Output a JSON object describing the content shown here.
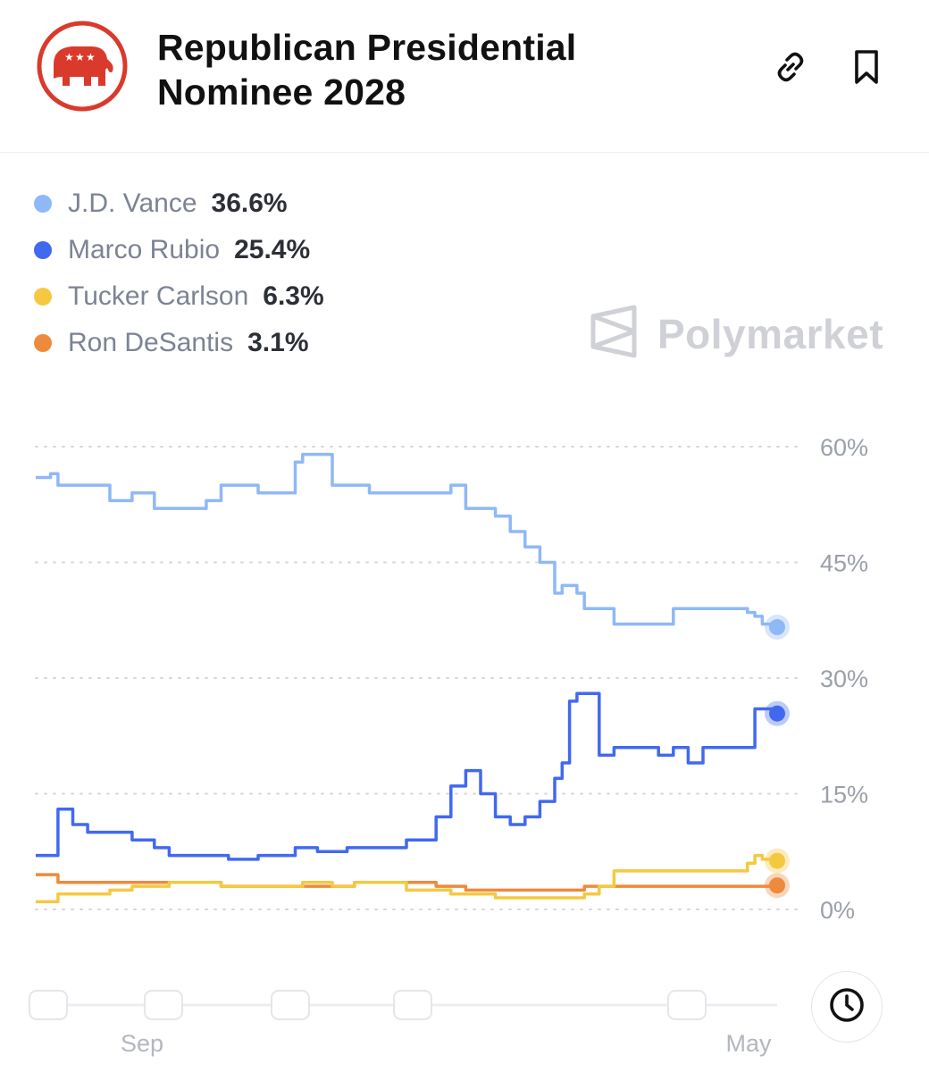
{
  "header": {
    "title": "Republican Presidential Nominee 2028",
    "logo_icon": "republican-elephant-logo",
    "link_icon": "link-icon",
    "bookmark_icon": "bookmark-icon"
  },
  "watermark": {
    "text": "Polymarket",
    "icon": "polymarket-logo-icon"
  },
  "legend": [
    {
      "name": "J.D. Vance",
      "value": "36.6%",
      "color": "#8fb8f7"
    },
    {
      "name": "Marco Rubio",
      "value": "25.4%",
      "color": "#4169f0"
    },
    {
      "name": "Tucker Carlson",
      "value": "6.3%",
      "color": "#f5c842"
    },
    {
      "name": "Ron DeSantis",
      "value": "3.1%",
      "color": "#ee8a3c"
    }
  ],
  "chart_data": {
    "type": "line",
    "title": "",
    "xlabel": "",
    "ylabel": "",
    "ylim": [
      0,
      60
    ],
    "y_ticks": [
      "60%",
      "45%",
      "30%",
      "15%",
      "0%"
    ],
    "y_tick_values": [
      60,
      45,
      30,
      15,
      0
    ],
    "x_ticks": [
      "Sep",
      "May"
    ],
    "grid": true,
    "legend_position": "top-left",
    "x": [
      0,
      2,
      3,
      5,
      7,
      10,
      13,
      16,
      18,
      20,
      23,
      25,
      26,
      28,
      30,
      33,
      35,
      36,
      38,
      40,
      42,
      43,
      45,
      48,
      50,
      52,
      54,
      56,
      58,
      60,
      62,
      64,
      66,
      68,
      70,
      71,
      72,
      73,
      74,
      76,
      78,
      79,
      80,
      82,
      84,
      86,
      88,
      90,
      92,
      94,
      96,
      97,
      98,
      100
    ],
    "series": [
      {
        "name": "J.D. Vance",
        "color": "#8fb8f7",
        "values": [
          56,
          56.5,
          55,
          55,
          55,
          53,
          54,
          52,
          52,
          52,
          53,
          55,
          55,
          55,
          54,
          54,
          58,
          59,
          59,
          55,
          55,
          55,
          54,
          54,
          54,
          54,
          54,
          55,
          52,
          52,
          51,
          49,
          47,
          45,
          41,
          42,
          42,
          41,
          39,
          39,
          37,
          37,
          37,
          37,
          37,
          39,
          39,
          39,
          39,
          39,
          38.5,
          38,
          37,
          36.6
        ]
      },
      {
        "name": "Marco Rubio",
        "color": "#4169f0",
        "values": [
          7,
          7,
          13,
          11,
          10,
          10,
          9,
          8,
          7,
          7,
          7,
          7,
          6.5,
          6.5,
          7,
          7,
          8,
          8,
          7.5,
          7.5,
          8,
          8,
          8,
          8,
          9,
          9,
          12,
          16,
          18,
          15,
          12,
          11,
          12,
          14,
          17,
          19,
          27,
          28,
          28,
          20,
          21,
          21,
          21,
          21,
          20,
          21,
          19,
          21,
          21,
          21,
          21,
          26,
          26,
          25.4
        ]
      },
      {
        "name": "Tucker Carlson",
        "color": "#f5c842",
        "values": [
          1,
          1,
          2,
          2,
          2,
          2.5,
          3,
          3,
          3.5,
          3.5,
          3.5,
          3,
          3,
          3,
          3,
          3,
          3,
          3.5,
          3.5,
          3,
          3,
          3.5,
          3.5,
          3.5,
          2.5,
          2.5,
          2.5,
          2,
          2,
          2,
          1.5,
          1.5,
          1.5,
          1.5,
          1.5,
          1.5,
          1.5,
          1.5,
          2,
          3,
          5,
          5,
          5,
          5,
          5,
          5,
          5,
          5,
          5,
          5,
          6,
          7,
          6.5,
          6.3
        ]
      },
      {
        "name": "Ron DeSantis",
        "color": "#ee8a3c",
        "values": [
          4.5,
          4.5,
          3.5,
          3.5,
          3.5,
          3.5,
          3.5,
          3.5,
          3.5,
          3.5,
          3.5,
          3,
          3,
          3,
          3,
          3,
          3,
          3,
          3,
          3,
          3,
          3.5,
          3.5,
          3.5,
          3.5,
          3.5,
          3,
          3,
          2.5,
          2.5,
          2.5,
          2.5,
          2.5,
          2.5,
          2.5,
          2.5,
          2.5,
          2.5,
          3,
          3,
          3,
          3,
          3,
          3,
          3,
          3,
          3,
          3,
          3,
          3,
          3,
          3,
          3,
          3.1
        ]
      }
    ]
  },
  "timeline": {
    "labels": [
      "Sep",
      "May"
    ],
    "history_icon": "clock-icon"
  }
}
